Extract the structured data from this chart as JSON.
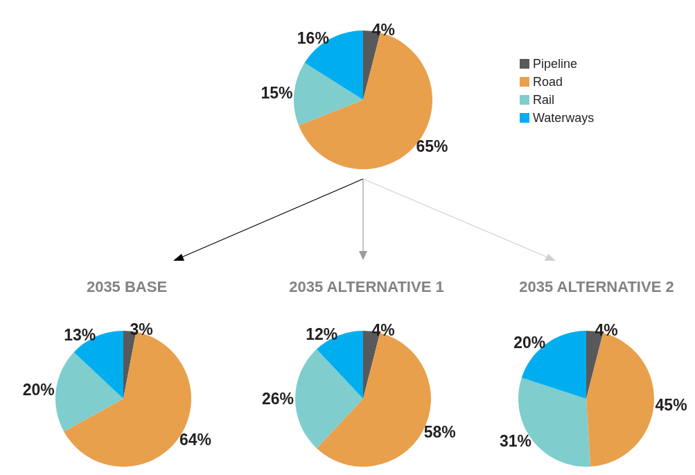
{
  "chart_data": [
    {
      "type": "pie",
      "categories": [
        "Pipeline",
        "Road",
        "Rail",
        "Waterways"
      ],
      "values": [
        4,
        65,
        15,
        16
      ],
      "value_labels": [
        "4%",
        "65%",
        "15%",
        "16%"
      ],
      "colors": [
        "#58595b",
        "#e8a04c",
        "#7fcdcd",
        "#00aeef"
      ],
      "legend": "right"
    },
    {
      "type": "pie",
      "title": "2035 BASE",
      "categories": [
        null,
        null,
        null,
        null
      ],
      "values": [
        3,
        64,
        20,
        13
      ],
      "value_labels": [
        "3%",
        "64%",
        "20%",
        "13%"
      ],
      "colors": [
        "#58595b",
        "#e8a04c",
        "#7fcdcd",
        "#00aeef"
      ]
    },
    {
      "type": "pie",
      "title": "2035 ALTERNATIVE 1",
      "categories": [
        null,
        null,
        null,
        null
      ],
      "values": [
        4,
        58,
        26,
        12
      ],
      "value_labels": [
        "4%",
        "58%",
        "26%",
        "12%"
      ],
      "colors": [
        "#58595b",
        "#e8a04c",
        "#7fcdcd",
        "#00aeef"
      ]
    },
    {
      "type": "pie",
      "title": "2035 ALTERNATIVE 2",
      "categories": [
        null,
        null,
        null,
        null
      ],
      "values": [
        4,
        45,
        31,
        20
      ],
      "value_labels": [
        "4%",
        "45%",
        "31%",
        "20%"
      ],
      "colors": [
        "#58595b",
        "#e8a04c",
        "#7fcdcd",
        "#00aeef"
      ]
    }
  ]
}
